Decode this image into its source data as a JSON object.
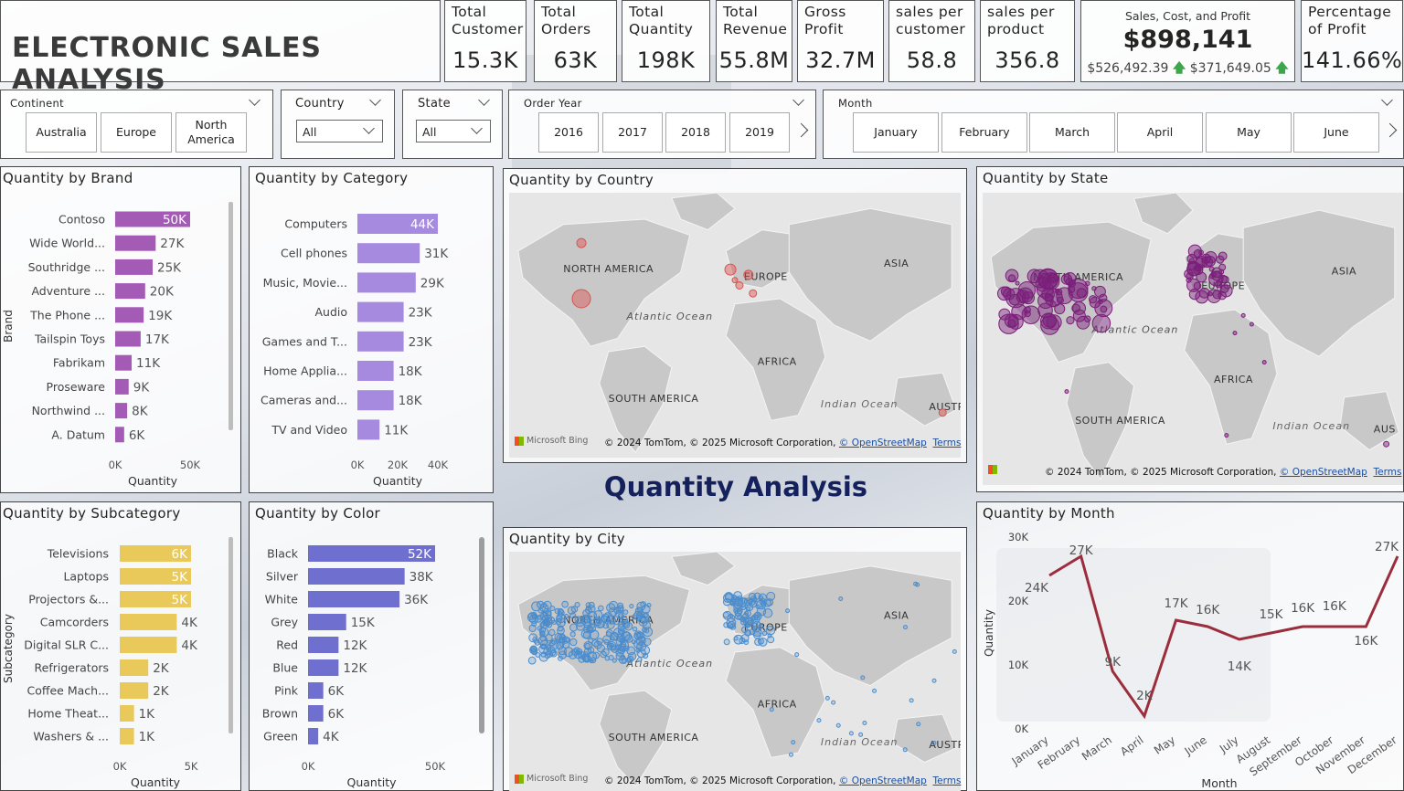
{
  "header": {
    "title": "ELECTRONIC SALES ANALYSIS"
  },
  "kpis": [
    {
      "label": "Total Customer",
      "value": "15.3K"
    },
    {
      "label": "Total Orders",
      "value": "63K"
    },
    {
      "label": "Total Quantity",
      "value": "198K"
    },
    {
      "label": "Total Revenue",
      "value": "55.8M"
    },
    {
      "label": "Gross Profit",
      "value": "32.7M"
    },
    {
      "label": "sales per customer",
      "value": "58.8"
    },
    {
      "label": "sales per product",
      "value": "356.8"
    }
  ],
  "scp_card": {
    "label": "Sales, Cost, and Profit",
    "value": "$898,141",
    "cost": "$526,492.39",
    "profit": "$371,649.05"
  },
  "pct_profit": {
    "label": "Percentage of Profit",
    "value": "141.66%"
  },
  "slicers": {
    "continent": {
      "label": "Continent",
      "options": [
        "Australia",
        "Europe",
        "North America"
      ]
    },
    "country": {
      "label": "Country",
      "value": "All"
    },
    "state": {
      "label": "State",
      "value": "All"
    },
    "order_year": {
      "label": "Order Year",
      "options": [
        "2016",
        "2017",
        "2018",
        "2019"
      ]
    },
    "month": {
      "label": "Month",
      "options": [
        "January",
        "February",
        "March",
        "April",
        "May",
        "June"
      ]
    }
  },
  "section_title": "Quantity Analysis",
  "maps": {
    "country": {
      "title": "Quantity by Country"
    },
    "state": {
      "title": "Quantity by State"
    },
    "city": {
      "title": "Quantity by City"
    },
    "labels": {
      "na": "NORTH AMERICA",
      "eu": "EUROPE",
      "asia": "ASIA",
      "africa": "AFRICA",
      "sa": "SOUTH AMERICA",
      "atl": "Atlantic Ocean",
      "ind": "Indian Ocean",
      "aus": "AUSTR",
      "aus2": "AUS"
    },
    "bing": "Microsoft Bing",
    "attribution": "© 2024 TomTom, © 2025 Microsoft Corporation,",
    "osm": "© OpenStreetMap",
    "terms": "Terms",
    "colors": {
      "land": "#c8c8c8",
      "water": "#e6e6e6",
      "country": "#d9534f",
      "state": "#7b1e7a",
      "city": "#4a8ccc"
    }
  },
  "chart_data": [
    {
      "id": "brand",
      "type": "bar",
      "orientation": "horizontal",
      "title": "Quantity by Brand",
      "xlabel": "Quantity",
      "ylabel": "Brand",
      "categories": [
        "Contoso",
        "Wide World...",
        "Southridge ...",
        "Adventure ...",
        "The Phone ...",
        "Tailspin Toys",
        "Fabrikam",
        "Proseware",
        "Northwind ...",
        "A. Datum"
      ],
      "values": [
        50000,
        27000,
        25000,
        20000,
        19000,
        17000,
        11000,
        9000,
        8000,
        6000
      ],
      "value_labels": [
        "50K",
        "27K",
        "25K",
        "20K",
        "19K",
        "17K",
        "11K",
        "9K",
        "8K",
        "6K"
      ],
      "xticks": [
        "0K",
        "50K"
      ],
      "xlim": [
        0,
        50000
      ],
      "color": "#a45bb5"
    },
    {
      "id": "category",
      "type": "bar",
      "orientation": "horizontal",
      "title": "Quantity by Category",
      "xlabel": "Quantity",
      "ylabel": "",
      "categories": [
        "Computers",
        "Cell phones",
        "Music, Movie...",
        "Audio",
        "Games and T...",
        "Home Applia...",
        "Cameras and...",
        "TV and Video"
      ],
      "values": [
        44000,
        31000,
        29000,
        23000,
        23000,
        18000,
        18000,
        11000
      ],
      "value_labels": [
        "44K",
        "31K",
        "29K",
        "23K",
        "23K",
        "18K",
        "18K",
        "11K"
      ],
      "xticks": [
        "0K",
        "20K",
        "40K"
      ],
      "xlim": [
        0,
        40000
      ],
      "color": "#a68ae0"
    },
    {
      "id": "subcategory",
      "type": "bar",
      "orientation": "horizontal",
      "title": "Quantity by Subcategory",
      "xlabel": "Quantity",
      "ylabel": "Subcategory",
      "categories": [
        "Televisions",
        "Laptops",
        "Projectors &...",
        "Camcorders",
        "Digital SLR C...",
        "Refrigerators",
        "Coffee Mach...",
        "Home Theat...",
        "Washers & ..."
      ],
      "values": [
        6000,
        5000,
        5000,
        4000,
        4000,
        2000,
        2000,
        1000,
        1000
      ],
      "value_labels": [
        "6K",
        "5K",
        "5K",
        "4K",
        "4K",
        "2K",
        "2K",
        "1K",
        "1K"
      ],
      "xticks": [
        "0K",
        "5K"
      ],
      "xlim": [
        0,
        5000
      ],
      "color": "#e8c95a"
    },
    {
      "id": "color",
      "type": "bar",
      "orientation": "horizontal",
      "title": "Quantity by Color",
      "xlabel": "Quantity",
      "ylabel": "",
      "categories": [
        "Black",
        "Silver",
        "White",
        "Grey",
        "Red",
        "Blue",
        "Pink",
        "Brown",
        "Green"
      ],
      "values": [
        52000,
        38000,
        36000,
        15000,
        12000,
        12000,
        6000,
        6000,
        4000
      ],
      "value_labels": [
        "52K",
        "38K",
        "36K",
        "15K",
        "12K",
        "12K",
        "6K",
        "6K",
        "4K"
      ],
      "xticks": [
        "0K",
        "50K"
      ],
      "xlim": [
        0,
        50000
      ],
      "color": "#6f6fcf"
    },
    {
      "id": "month",
      "type": "line",
      "title": "Quantity by Month",
      "xlabel": "Month",
      "ylabel": "Quantity",
      "categories": [
        "January",
        "February",
        "March",
        "April",
        "May",
        "June",
        "July",
        "August",
        "September",
        "October",
        "November",
        "December"
      ],
      "values": [
        24000,
        27000,
        9000,
        2000,
        17000,
        16000,
        14000,
        15000,
        16000,
        16000,
        16000,
        27000
      ],
      "value_labels": [
        "24K",
        "27K",
        "9K",
        "2K",
        "17K",
        "16K",
        "14K",
        "15K",
        "16K",
        "16K",
        "16K",
        "27K"
      ],
      "yticks": [
        "0K",
        "10K",
        "20K",
        "30K"
      ],
      "ylim": [
        0,
        30000
      ],
      "color": "#9b2d3c"
    }
  ]
}
